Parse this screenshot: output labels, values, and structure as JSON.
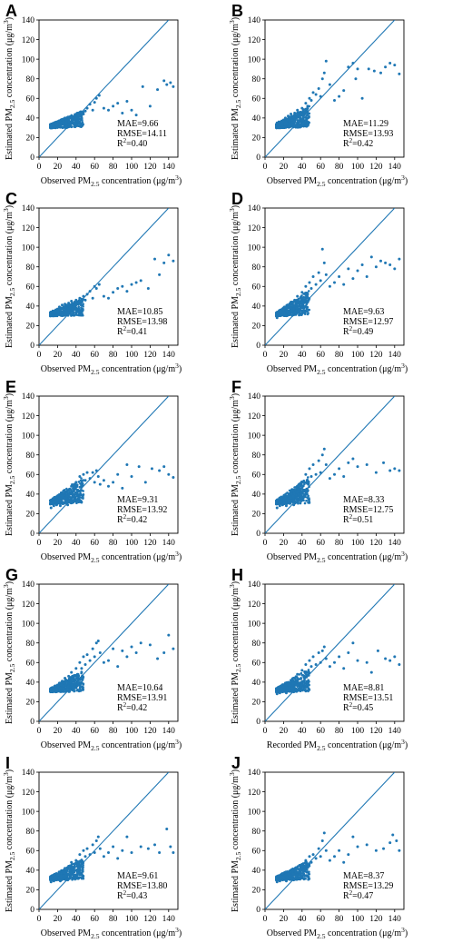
{
  "colors": {
    "points": "#1f77b4",
    "line": "#1f77b4",
    "axis": "#000000"
  },
  "chart_data": [
    {
      "letter": "A",
      "type": "scatter",
      "xlabel": "Observed PM2.5 concentration (μg/m3)",
      "ylabel": "Estimated PM2.5 concentration (μg/m3)",
      "xlim": [
        0,
        150
      ],
      "ylim": [
        0,
        140
      ],
      "xticks": [
        0,
        20,
        40,
        60,
        80,
        100,
        120,
        140
      ],
      "yticks": [
        0,
        20,
        40,
        60,
        80,
        100,
        120,
        140
      ],
      "identity_line": true,
      "stats": {
        "mae": "MAE=9.66",
        "rmse": "RMSE=14.11",
        "r2": "R2=0.40"
      },
      "spread": 0.7,
      "x": [
        13,
        15,
        16,
        18,
        19,
        20,
        21,
        22,
        23,
        24,
        25,
        26,
        27,
        28,
        29,
        30,
        31,
        32,
        34,
        35,
        36,
        38,
        40,
        42,
        44,
        14,
        17,
        20,
        23,
        26,
        29,
        32,
        35,
        38,
        41,
        45,
        48,
        50,
        52,
        55,
        58,
        60,
        62,
        65,
        70,
        75,
        80,
        85,
        90,
        95,
        100,
        105,
        112,
        120,
        128,
        135,
        138,
        142,
        145
      ],
      "y": [
        33,
        34,
        32,
        35,
        33,
        36,
        34,
        37,
        33,
        35,
        38,
        34,
        36,
        40,
        35,
        37,
        33,
        39,
        36,
        41,
        38,
        35,
        40,
        37,
        42,
        30,
        31,
        33,
        31,
        35,
        32,
        36,
        31,
        38,
        33,
        45,
        44,
        47,
        50,
        54,
        48,
        56,
        60,
        63,
        50,
        48,
        52,
        55,
        45,
        57,
        48,
        43,
        72,
        52,
        69,
        78,
        74,
        76,
        72
      ]
    },
    {
      "letter": "B",
      "type": "scatter",
      "xlabel": "Observed PM2.5 concentration (μg/m3)",
      "ylabel": "Estimated PM2.5 concentration (μg/m3)",
      "xlim": [
        0,
        150
      ],
      "ylim": [
        0,
        140
      ],
      "xticks": [
        0,
        20,
        40,
        60,
        80,
        100,
        120,
        140
      ],
      "yticks": [
        0,
        20,
        40,
        60,
        80,
        100,
        120,
        140
      ],
      "identity_line": true,
      "stats": {
        "mae": "MAE=11.29",
        "rmse": "RMSE=13.93",
        "r2": "R2=0.42"
      },
      "spread": 0.9,
      "x": [
        13,
        15,
        16,
        18,
        19,
        20,
        21,
        22,
        23,
        24,
        25,
        26,
        27,
        28,
        29,
        30,
        31,
        32,
        34,
        35,
        36,
        38,
        40,
        42,
        44,
        46,
        48,
        50,
        52,
        55,
        58,
        60,
        62,
        64,
        66,
        70,
        75,
        80,
        85,
        90,
        95,
        98,
        100,
        105,
        112,
        118,
        125,
        130,
        135,
        140,
        145
      ],
      "y": [
        35,
        36,
        34,
        37,
        35,
        38,
        36,
        40,
        35,
        38,
        42,
        37,
        40,
        44,
        38,
        41,
        36,
        45,
        40,
        48,
        44,
        40,
        50,
        46,
        55,
        52,
        60,
        58,
        66,
        64,
        70,
        62,
        80,
        86,
        98,
        74,
        58,
        62,
        68,
        92,
        96,
        80,
        90,
        60,
        90,
        88,
        86,
        92,
        96,
        94,
        85
      ]
    },
    {
      "letter": "C",
      "type": "scatter",
      "xlabel": "Observed PM2.5 concentration (μg/m3)",
      "ylabel": "Estimated PM2.5 concentration (μg/m3)",
      "xlim": [
        0,
        150
      ],
      "ylim": [
        0,
        140
      ],
      "xticks": [
        0,
        20,
        40,
        60,
        80,
        100,
        120,
        140
      ],
      "yticks": [
        0,
        20,
        40,
        60,
        80,
        100,
        120,
        140
      ],
      "identity_line": true,
      "stats": {
        "mae": "MAE=10.85",
        "rmse": "RMSE=13.98",
        "r2": "R2=0.41"
      },
      "spread": 0.7,
      "x": [
        13,
        15,
        16,
        18,
        19,
        20,
        21,
        22,
        23,
        24,
        25,
        26,
        27,
        28,
        29,
        30,
        31,
        32,
        34,
        35,
        36,
        38,
        40,
        42,
        44,
        46,
        48,
        50,
        52,
        55,
        58,
        60,
        62,
        65,
        70,
        75,
        80,
        85,
        90,
        95,
        100,
        105,
        110,
        118,
        125,
        130,
        135,
        140,
        145
      ],
      "y": [
        34,
        35,
        33,
        36,
        35,
        37,
        35,
        39,
        36,
        38,
        41,
        37,
        39,
        42,
        38,
        41,
        37,
        43,
        40,
        45,
        42,
        39,
        46,
        43,
        48,
        44,
        50,
        46,
        52,
        55,
        48,
        60,
        58,
        62,
        50,
        48,
        54,
        58,
        60,
        55,
        62,
        64,
        66,
        58,
        88,
        72,
        84,
        92,
        86
      ]
    },
    {
      "letter": "D",
      "type": "scatter",
      "xlabel": "Observed PM2.5 concentration (μg/m3)",
      "ylabel": "Estimated PM2.5 concentration (μg/m3)",
      "xlim": [
        0,
        150
      ],
      "ylim": [
        0,
        140
      ],
      "xticks": [
        0,
        20,
        40,
        60,
        80,
        100,
        120,
        140
      ],
      "yticks": [
        0,
        20,
        40,
        60,
        80,
        100,
        120,
        140
      ],
      "identity_line": true,
      "stats": {
        "mae": "MAE=9.63",
        "rmse": "RMSE=12.97",
        "r2": "R2=0.49"
      },
      "spread": 1.1,
      "x": [
        13,
        15,
        16,
        18,
        19,
        20,
        21,
        22,
        23,
        24,
        25,
        26,
        27,
        28,
        29,
        30,
        31,
        32,
        34,
        35,
        36,
        38,
        40,
        42,
        44,
        46,
        48,
        50,
        52,
        55,
        58,
        60,
        62,
        64,
        66,
        70,
        75,
        80,
        85,
        90,
        95,
        100,
        105,
        110,
        115,
        120,
        125,
        130,
        135,
        140,
        145
      ],
      "y": [
        28,
        32,
        30,
        34,
        31,
        36,
        33,
        38,
        30,
        35,
        40,
        33,
        38,
        44,
        35,
        40,
        31,
        46,
        38,
        50,
        45,
        36,
        54,
        46,
        60,
        52,
        64,
        58,
        70,
        62,
        74,
        66,
        98,
        84,
        72,
        60,
        64,
        70,
        62,
        78,
        68,
        76,
        82,
        70,
        90,
        80,
        86,
        84,
        82,
        78,
        88
      ]
    },
    {
      "letter": "E",
      "type": "scatter",
      "xlabel": "Observed PM2.5 concentration (μg/m3)",
      "ylabel": "Estimated PM2.5 concentration (μg/m3)",
      "xlim": [
        0,
        150
      ],
      "ylim": [
        0,
        140
      ],
      "xticks": [
        0,
        20,
        40,
        60,
        80,
        100,
        120,
        140
      ],
      "yticks": [
        0,
        20,
        40,
        60,
        80,
        100,
        120,
        140
      ],
      "identity_line": true,
      "stats": {
        "mae": "MAE=9.31",
        "rmse": "RMSE=13.92",
        "r2": "R2=0.42"
      },
      "spread": 1.2,
      "x": [
        13,
        15,
        16,
        18,
        19,
        20,
        21,
        22,
        23,
        24,
        25,
        26,
        27,
        28,
        29,
        30,
        31,
        32,
        34,
        35,
        36,
        38,
        40,
        42,
        44,
        46,
        48,
        50,
        52,
        55,
        58,
        60,
        62,
        64,
        66,
        70,
        75,
        80,
        85,
        90,
        95,
        100,
        108,
        115,
        122,
        130,
        135,
        140,
        145
      ],
      "y": [
        26,
        30,
        28,
        32,
        29,
        34,
        31,
        36,
        28,
        33,
        38,
        31,
        36,
        42,
        33,
        38,
        29,
        44,
        36,
        48,
        43,
        34,
        52,
        44,
        58,
        50,
        60,
        54,
        62,
        56,
        62,
        52,
        64,
        58,
        50,
        54,
        48,
        52,
        60,
        46,
        70,
        58,
        68,
        52,
        66,
        64,
        68,
        60,
        57
      ]
    },
    {
      "letter": "F",
      "type": "scatter",
      "xlabel": "Observed PM2.5 concentration (μg/m3)",
      "ylabel": "Estimated PM2.5 concentration (μg/m3)",
      "xlim": [
        0,
        150
      ],
      "ylim": [
        0,
        140
      ],
      "xticks": [
        0,
        20,
        40,
        60,
        80,
        100,
        120,
        140
      ],
      "yticks": [
        0,
        20,
        40,
        60,
        80,
        100,
        120,
        140
      ],
      "identity_line": true,
      "stats": {
        "mae": "MAE=8.33",
        "rmse": "RMSE=12.75",
        "r2": "R2=0.51"
      },
      "spread": 1.2,
      "x": [
        13,
        15,
        16,
        18,
        19,
        20,
        21,
        22,
        23,
        24,
        25,
        26,
        27,
        28,
        29,
        30,
        31,
        32,
        34,
        35,
        36,
        38,
        40,
        42,
        44,
        46,
        48,
        50,
        52,
        55,
        58,
        60,
        62,
        64,
        66,
        70,
        75,
        80,
        85,
        90,
        95,
        100,
        110,
        120,
        128,
        135,
        140,
        145
      ],
      "y": [
        26,
        30,
        28,
        32,
        29,
        34,
        31,
        36,
        28,
        33,
        38,
        31,
        36,
        42,
        33,
        38,
        29,
        44,
        36,
        48,
        43,
        34,
        52,
        44,
        60,
        52,
        66,
        58,
        70,
        60,
        74,
        62,
        80,
        86,
        70,
        56,
        60,
        66,
        58,
        72,
        76,
        68,
        70,
        62,
        72,
        64,
        66,
        64
      ]
    },
    {
      "letter": "G",
      "type": "scatter",
      "xlabel": "Observed PM2.5 concentration (μg/m3)",
      "ylabel": "Estimated PM2.5 concentration (μg/m3)",
      "xlim": [
        0,
        150
      ],
      "ylim": [
        0,
        140
      ],
      "xticks": [
        0,
        20,
        40,
        60,
        80,
        100,
        120,
        140
      ],
      "yticks": [
        0,
        20,
        40,
        60,
        80,
        100,
        120,
        140
      ],
      "identity_line": true,
      "stats": {
        "mae": "MAE=10.64",
        "rmse": "RMSE=13.91",
        "r2": "R2=0.42"
      },
      "spread": 0.9,
      "x": [
        13,
        15,
        16,
        18,
        19,
        20,
        21,
        22,
        23,
        24,
        25,
        26,
        27,
        28,
        29,
        30,
        31,
        32,
        34,
        35,
        36,
        38,
        40,
        42,
        44,
        46,
        48,
        50,
        52,
        55,
        58,
        60,
        62,
        64,
        66,
        70,
        75,
        80,
        85,
        90,
        95,
        100,
        105,
        110,
        120,
        128,
        135,
        140,
        145
      ],
      "y": [
        33,
        34,
        32,
        35,
        33,
        37,
        35,
        39,
        34,
        37,
        41,
        36,
        39,
        44,
        37,
        41,
        35,
        46,
        40,
        50,
        46,
        38,
        54,
        48,
        60,
        54,
        66,
        58,
        68,
        62,
        74,
        66,
        80,
        82,
        70,
        60,
        62,
        74,
        56,
        72,
        66,
        76,
        70,
        80,
        78,
        64,
        70,
        88,
        74
      ]
    },
    {
      "letter": "H",
      "type": "scatter",
      "xlabel": "Recorded PM2.5 concentration (μg/m3)",
      "ylabel": "Estimated PM2.5 concentration (μg/m3)",
      "xlim": [
        0,
        150
      ],
      "ylim": [
        0,
        140
      ],
      "xticks": [
        0,
        20,
        40,
        60,
        80,
        100,
        120,
        140
      ],
      "yticks": [
        0,
        20,
        40,
        60,
        80,
        100,
        120,
        140
      ],
      "identity_line": true,
      "stats": {
        "mae": "MAE=8.81",
        "rmse": "RMSE=13.51",
        "r2": "R2=0.45"
      },
      "spread": 1.0,
      "x": [
        13,
        15,
        16,
        18,
        19,
        20,
        21,
        22,
        23,
        24,
        25,
        26,
        27,
        28,
        29,
        30,
        31,
        32,
        34,
        35,
        36,
        38,
        40,
        42,
        44,
        46,
        48,
        50,
        52,
        55,
        58,
        60,
        62,
        64,
        66,
        70,
        75,
        80,
        85,
        90,
        95,
        100,
        110,
        115,
        122,
        130,
        135,
        140,
        145
      ],
      "y": [
        28,
        31,
        29,
        33,
        30,
        35,
        32,
        37,
        29,
        34,
        39,
        32,
        37,
        42,
        34,
        39,
        30,
        44,
        37,
        48,
        43,
        35,
        52,
        45,
        58,
        50,
        62,
        56,
        66,
        58,
        70,
        60,
        72,
        76,
        64,
        56,
        60,
        66,
        54,
        70,
        80,
        62,
        60,
        50,
        72,
        64,
        62,
        66,
        58
      ]
    },
    {
      "letter": "I",
      "type": "scatter",
      "xlabel": "Observed PM2.5 concentration (μg/m3)",
      "ylabel": "Estimated PM2.5 concentration (μg/m3)",
      "xlim": [
        0,
        150
      ],
      "ylim": [
        0,
        140
      ],
      "xticks": [
        0,
        20,
        40,
        60,
        80,
        100,
        120,
        140
      ],
      "yticks": [
        0,
        20,
        40,
        60,
        80,
        100,
        120,
        140
      ],
      "identity_line": true,
      "stats": {
        "mae": "MAE=9.61",
        "rmse": "RMSE=13.80",
        "r2": "R2=0.43"
      },
      "spread": 0.9,
      "x": [
        13,
        15,
        16,
        18,
        19,
        20,
        21,
        22,
        23,
        24,
        25,
        26,
        27,
        28,
        29,
        30,
        31,
        32,
        34,
        35,
        36,
        38,
        40,
        42,
        44,
        46,
        48,
        50,
        52,
        55,
        58,
        60,
        62,
        64,
        66,
        70,
        75,
        80,
        85,
        90,
        95,
        100,
        110,
        118,
        125,
        130,
        138,
        142,
        145
      ],
      "y": [
        28,
        31,
        29,
        33,
        30,
        35,
        32,
        37,
        29,
        34,
        39,
        32,
        37,
        42,
        34,
        39,
        30,
        44,
        37,
        48,
        43,
        35,
        50,
        44,
        56,
        50,
        60,
        54,
        62,
        56,
        66,
        58,
        70,
        74,
        62,
        54,
        58,
        64,
        52,
        60,
        74,
        58,
        64,
        62,
        66,
        58,
        82,
        64,
        58
      ]
    },
    {
      "letter": "J",
      "type": "scatter",
      "xlabel": "Observed PM2.5 concentration (μg/m3)",
      "ylabel": "Estimated PM2.5 concentration (μg/m3)",
      "xlim": [
        0,
        150
      ],
      "ylim": [
        0,
        140
      ],
      "xticks": [
        0,
        20,
        40,
        60,
        80,
        100,
        120,
        140
      ],
      "yticks": [
        0,
        20,
        40,
        60,
        80,
        100,
        120,
        140
      ],
      "identity_line": true,
      "stats": {
        "mae": "MAE=8.37",
        "rmse": "RMSE=13.29",
        "r2": "R2=0.47"
      },
      "spread": 0.8,
      "x": [
        13,
        15,
        16,
        18,
        19,
        20,
        21,
        22,
        23,
        24,
        25,
        26,
        27,
        28,
        29,
        30,
        31,
        32,
        34,
        35,
        36,
        38,
        40,
        42,
        44,
        46,
        48,
        50,
        52,
        55,
        58,
        60,
        62,
        64,
        66,
        70,
        75,
        80,
        85,
        90,
        95,
        100,
        110,
        120,
        128,
        135,
        138,
        142,
        145
      ],
      "y": [
        28,
        30,
        29,
        32,
        30,
        33,
        31,
        35,
        29,
        33,
        36,
        31,
        34,
        38,
        32,
        36,
        30,
        40,
        34,
        42,
        38,
        33,
        46,
        40,
        50,
        44,
        54,
        48,
        56,
        52,
        62,
        54,
        70,
        78,
        60,
        50,
        54,
        60,
        48,
        56,
        74,
        64,
        66,
        60,
        62,
        68,
        76,
        70,
        60
      ]
    }
  ]
}
